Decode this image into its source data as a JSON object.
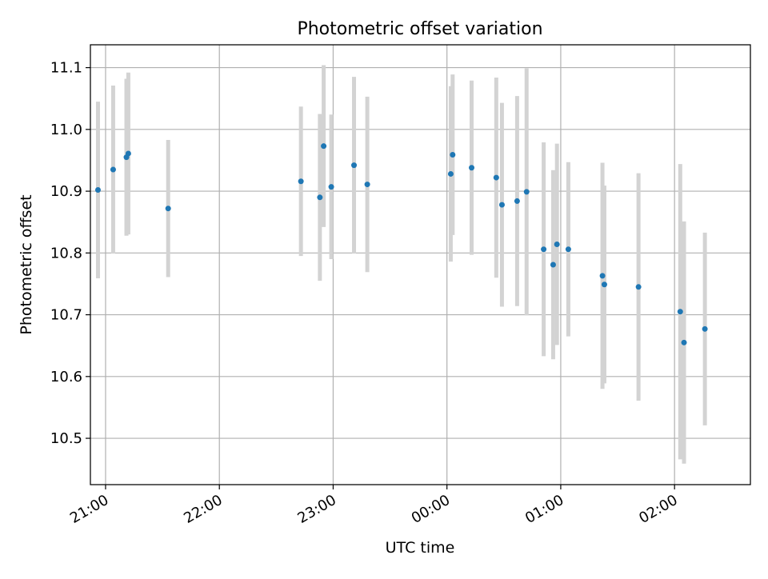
{
  "chart_data": {
    "type": "scatter",
    "title": "Photometric offset variation",
    "xlabel": "UTC time",
    "ylabel": "Photometric offset",
    "x_is_time": true,
    "xlim": [
      "20:52",
      "02:40"
    ],
    "ylim": [
      10.425,
      11.137
    ],
    "x_ticks": [
      "21:00",
      "22:00",
      "23:00",
      "00:00",
      "01:00",
      "02:00"
    ],
    "y_ticks": [
      10.5,
      10.6,
      10.7,
      10.8,
      10.9,
      11.0,
      11.1
    ],
    "y_tick_labels": [
      "10.5",
      "10.6",
      "10.7",
      "10.8",
      "10.9",
      "11.0",
      "11.1"
    ],
    "grid": true,
    "marker_color": "#1f77b4",
    "errorbar_color": "#d3d3d3",
    "points": [
      {
        "t": "20:56",
        "y": 10.902,
        "err": 0.143
      },
      {
        "t": "21:04",
        "y": 10.935,
        "err": 0.136
      },
      {
        "t": "21:11",
        "y": 10.955,
        "err": 0.127
      },
      {
        "t": "21:12",
        "y": 10.961,
        "err": 0.131
      },
      {
        "t": "21:33",
        "y": 10.872,
        "err": 0.111
      },
      {
        "t": "22:43",
        "y": 10.916,
        "err": 0.121
      },
      {
        "t": "22:53",
        "y": 10.89,
        "err": 0.135
      },
      {
        "t": "22:55",
        "y": 10.973,
        "err": 0.131
      },
      {
        "t": "22:59",
        "y": 10.907,
        "err": 0.117
      },
      {
        "t": "23:11",
        "y": 10.942,
        "err": 0.143
      },
      {
        "t": "23:18",
        "y": 10.911,
        "err": 0.142
      },
      {
        "t": "00:02",
        "y": 10.928,
        "err": 0.142
      },
      {
        "t": "00:03",
        "y": 10.959,
        "err": 0.13
      },
      {
        "t": "00:13",
        "y": 10.938,
        "err": 0.141
      },
      {
        "t": "00:26",
        "y": 10.922,
        "err": 0.162
      },
      {
        "t": "00:29",
        "y": 10.878,
        "err": 0.165
      },
      {
        "t": "00:37",
        "y": 10.884,
        "err": 0.17
      },
      {
        "t": "00:42",
        "y": 10.899,
        "err": 0.2
      },
      {
        "t": "00:51",
        "y": 10.806,
        "err": 0.173
      },
      {
        "t": "00:56",
        "y": 10.781,
        "err": 0.153
      },
      {
        "t": "00:58",
        "y": 10.814,
        "err": 0.163
      },
      {
        "t": "01:04",
        "y": 10.806,
        "err": 0.141
      },
      {
        "t": "01:22",
        "y": 10.763,
        "err": 0.183
      },
      {
        "t": "01:23",
        "y": 10.749,
        "err": 0.16
      },
      {
        "t": "01:41",
        "y": 10.745,
        "err": 0.184
      },
      {
        "t": "02:03",
        "y": 10.705,
        "err": 0.239
      },
      {
        "t": "02:05",
        "y": 10.655,
        "err": 0.196
      },
      {
        "t": "02:16",
        "y": 10.677,
        "err": 0.156
      }
    ]
  }
}
